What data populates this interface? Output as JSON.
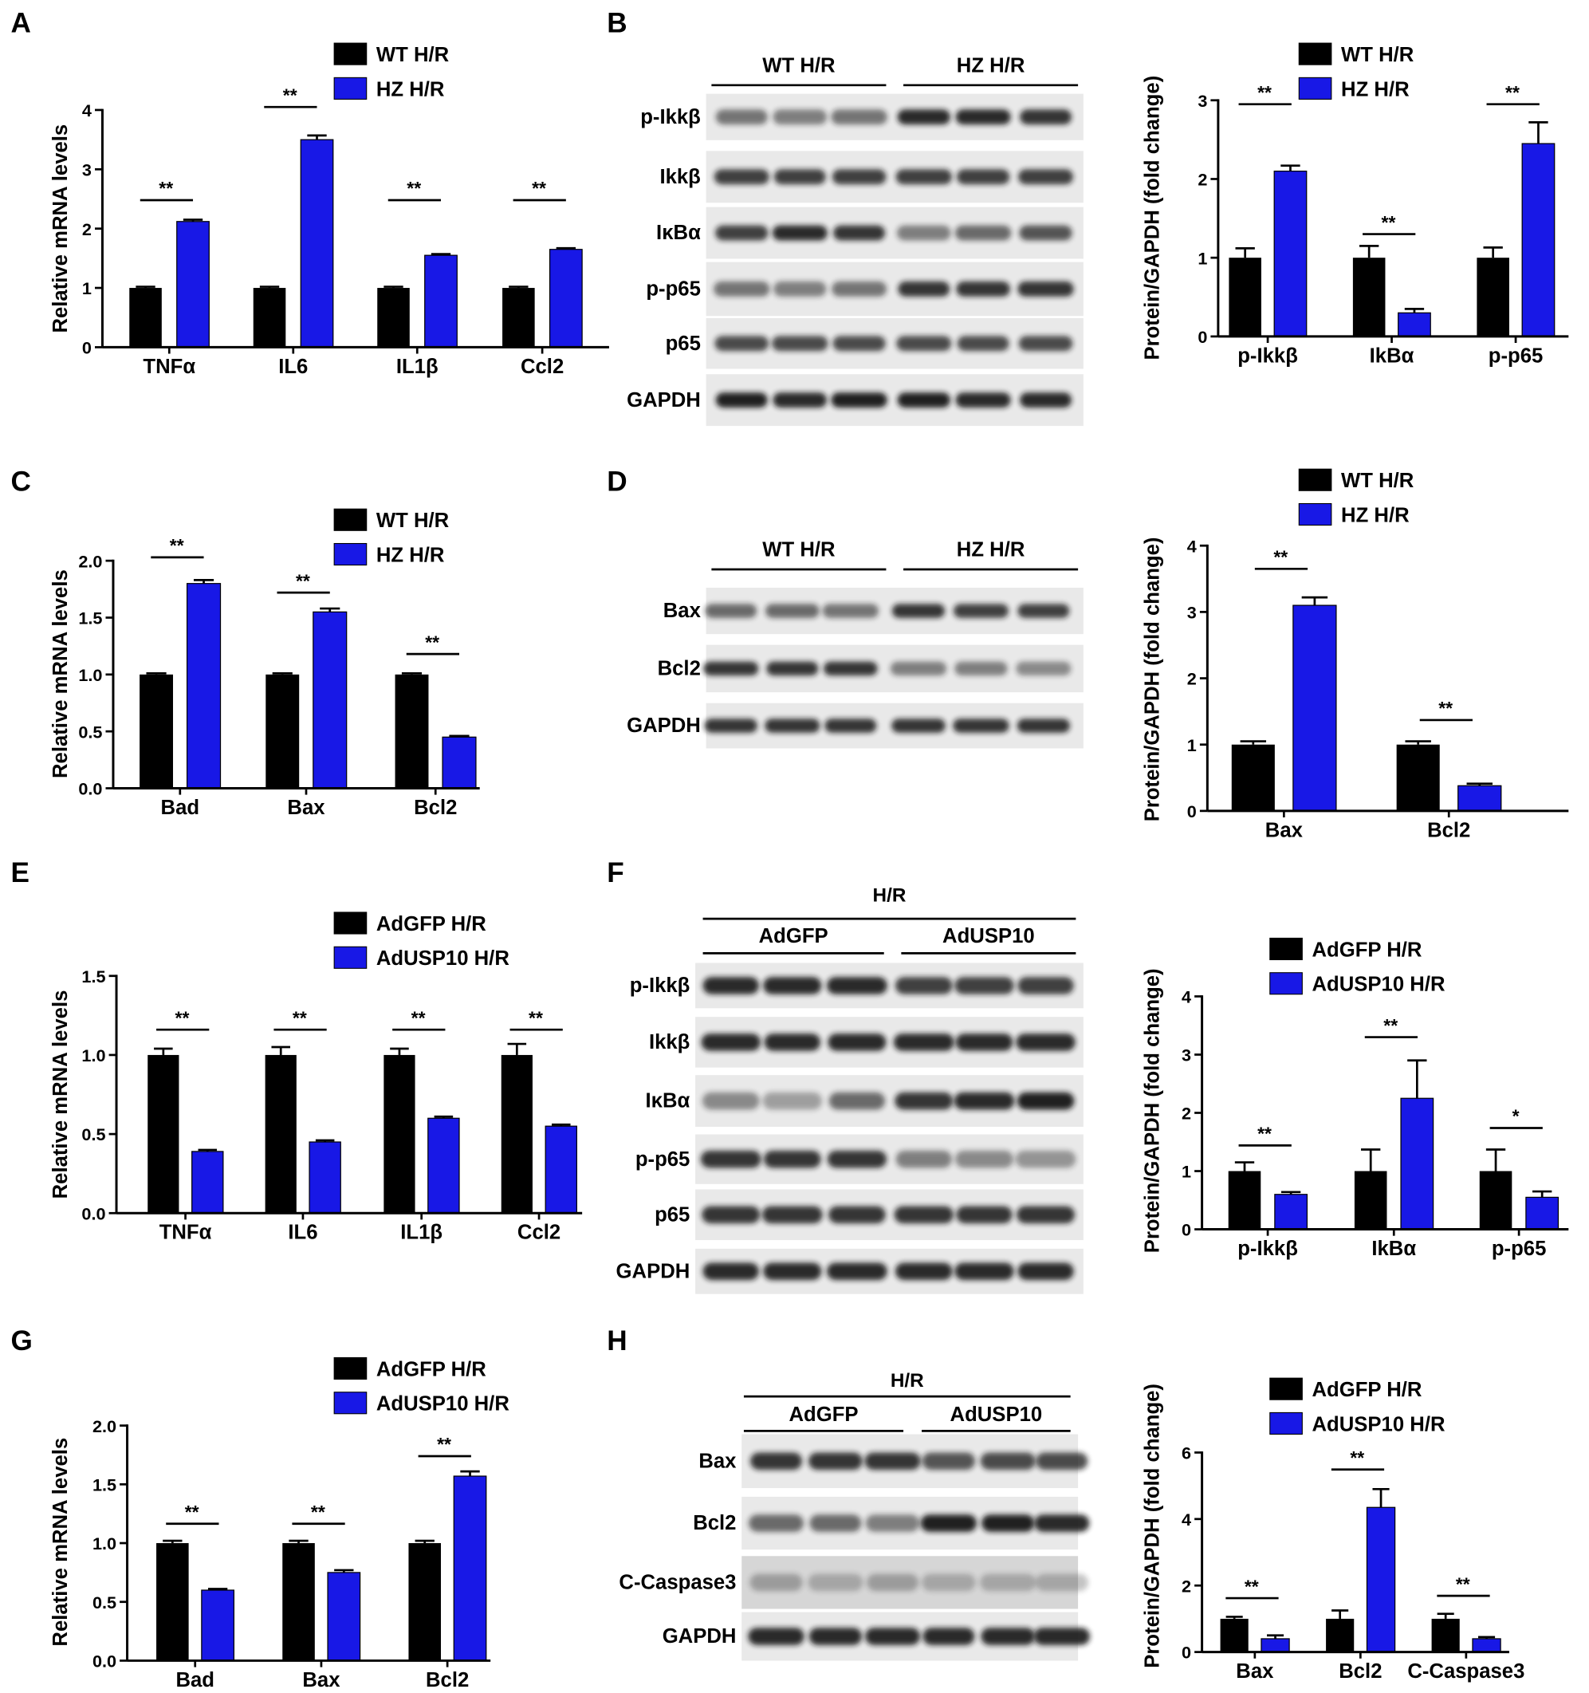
{
  "panels": [
    "A",
    "B",
    "C",
    "D",
    "E",
    "F",
    "G",
    "H"
  ],
  "colors": {
    "control": "#000000",
    "treatment": "#1818E6",
    "blot_band": "#141414",
    "blot_background": "#E9E9E9"
  },
  "chart_data": [
    {
      "type": "bar",
      "categories": [
        "TNFα",
        "IL6",
        "IL1β",
        "Ccl2"
      ],
      "series": [
        {
          "name": "WT H/R",
          "values": [
            1.0,
            1.0,
            1.0,
            1.0
          ],
          "errors": [
            0.02,
            0.02,
            0.02,
            0.02
          ],
          "color": "#000000"
        },
        {
          "name": "HZ H/R",
          "values": [
            2.12,
            3.5,
            1.55,
            1.65
          ],
          "errors": [
            0.03,
            0.07,
            0.02,
            0.02
          ],
          "color": "#1818E6"
        }
      ],
      "ylabel": "Relative mRNA levels",
      "ylim": [
        0,
        4
      ],
      "yticks": [
        "0",
        "1",
        "2",
        "3",
        "4"
      ],
      "significance": [
        "**",
        "**",
        "**",
        "**"
      ],
      "legend": "top",
      "grid": false
    },
    {
      "type": "bar",
      "categories": [
        "p-Ikkβ",
        "IkBα",
        "p-p65"
      ],
      "series": [
        {
          "name": "WT H/R",
          "values": [
            1.0,
            1.0,
            1.0
          ],
          "errors": [
            0.12,
            0.15,
            0.13
          ],
          "color": "#000000"
        },
        {
          "name": "HZ H/R",
          "values": [
            2.1,
            0.3,
            2.45
          ],
          "errors": [
            0.07,
            0.05,
            0.27
          ],
          "color": "#1818E6"
        }
      ],
      "ylabel": "Protein/GAPDH (fold change)",
      "ylim": [
        0,
        3
      ],
      "yticks": [
        "0",
        "1",
        "2",
        "3"
      ],
      "significance": [
        "**",
        "**",
        "**"
      ],
      "legend": "top",
      "grid": false
    },
    {
      "type": "bar",
      "categories": [
        "Bad",
        "Bax",
        "Bcl2"
      ],
      "series": [
        {
          "name": "WT H/R",
          "values": [
            1.0,
            1.0,
            1.0
          ],
          "errors": [
            0.01,
            0.01,
            0.01
          ],
          "color": "#000000"
        },
        {
          "name": "HZ H/R",
          "values": [
            1.8,
            1.55,
            0.45
          ],
          "errors": [
            0.03,
            0.03,
            0.01
          ],
          "color": "#1818E6"
        }
      ],
      "ylabel": "Relative mRNA levels",
      "ylim": [
        0,
        2
      ],
      "yticks": [
        "0.0",
        "0.5",
        "1.0",
        "1.5",
        "2.0"
      ],
      "significance": [
        "**",
        "**",
        "**"
      ],
      "legend": "top",
      "grid": false
    },
    {
      "type": "bar",
      "categories": [
        "Bax",
        "Bcl2"
      ],
      "series": [
        {
          "name": "WT H/R",
          "values": [
            1.0,
            1.0
          ],
          "errors": [
            0.05,
            0.05
          ],
          "color": "#000000"
        },
        {
          "name": "HZ H/R",
          "values": [
            3.1,
            0.38
          ],
          "errors": [
            0.12,
            0.03
          ],
          "color": "#1818E6"
        }
      ],
      "ylabel": "Protein/GAPDH (fold change)",
      "ylim": [
        0,
        4
      ],
      "yticks": [
        "0",
        "1",
        "2",
        "3",
        "4"
      ],
      "significance": [
        "**",
        "**"
      ],
      "legend": "top",
      "grid": false
    },
    {
      "type": "bar",
      "categories": [
        "TNFα",
        "IL6",
        "IL1β",
        "Ccl2"
      ],
      "series": [
        {
          "name": "AdGFP H/R",
          "values": [
            1.0,
            1.0,
            1.0,
            1.0
          ],
          "errors": [
            0.04,
            0.05,
            0.04,
            0.07
          ],
          "color": "#000000"
        },
        {
          "name": "AdUSP10 H/R",
          "values": [
            0.39,
            0.45,
            0.6,
            0.55
          ],
          "errors": [
            0.01,
            0.01,
            0.01,
            0.01
          ],
          "color": "#1818E6"
        }
      ],
      "ylabel": "Relative mRNA levels",
      "ylim": [
        0,
        1.5
      ],
      "yticks": [
        "0.0",
        "0.5",
        "1.0",
        "1.5"
      ],
      "significance": [
        "**",
        "**",
        "**",
        "**"
      ],
      "legend": "top",
      "grid": false
    },
    {
      "type": "bar",
      "categories": [
        "p-Ikkβ",
        "IkBα",
        "p-p65"
      ],
      "series": [
        {
          "name": "AdGFP H/R",
          "values": [
            1.0,
            1.0,
            1.0
          ],
          "errors": [
            0.15,
            0.37,
            0.37
          ],
          "color": "#000000"
        },
        {
          "name": "AdUSP10 H/R",
          "values": [
            0.6,
            2.25,
            0.55
          ],
          "errors": [
            0.04,
            0.65,
            0.1
          ],
          "color": "#1818E6"
        }
      ],
      "ylabel": "Protein/GAPDH (fold change)",
      "ylim": [
        0,
        4
      ],
      "yticks": [
        "0",
        "1",
        "2",
        "3",
        "4"
      ],
      "significance": [
        "**",
        "**",
        "*"
      ],
      "legend": "top",
      "grid": false
    },
    {
      "type": "bar",
      "categories": [
        "Bad",
        "Bax",
        "Bcl2"
      ],
      "series": [
        {
          "name": "AdGFP H/R",
          "values": [
            1.0,
            1.0,
            1.0
          ],
          "errors": [
            0.02,
            0.02,
            0.02
          ],
          "color": "#000000"
        },
        {
          "name": "AdUSP10 H/R",
          "values": [
            0.6,
            0.75,
            1.57
          ],
          "errors": [
            0.01,
            0.02,
            0.04
          ],
          "color": "#1818E6"
        }
      ],
      "ylabel": "Relative mRNA levels",
      "ylim": [
        0,
        2
      ],
      "yticks": [
        "0.0",
        "0.5",
        "1.0",
        "1.5",
        "2.0"
      ],
      "significance": [
        "**",
        "**",
        "**"
      ],
      "legend": "top",
      "grid": false
    },
    {
      "type": "bar",
      "categories": [
        "Bax",
        "Bcl2",
        "C-Caspase3"
      ],
      "series": [
        {
          "name": "AdGFP H/R",
          "values": [
            1.0,
            1.0,
            1.0
          ],
          "errors": [
            0.06,
            0.25,
            0.15
          ],
          "color": "#000000"
        },
        {
          "name": "AdUSP10 H/R",
          "values": [
            0.4,
            4.35,
            0.4
          ],
          "errors": [
            0.1,
            0.55,
            0.05
          ],
          "color": "#1818E6"
        }
      ],
      "ylabel": "Protein/GAPDH (fold change)",
      "ylim": [
        0,
        6
      ],
      "yticks": [
        "0",
        "2",
        "4",
        "6"
      ],
      "significance": [
        "**",
        "**",
        "**"
      ],
      "legend": "top",
      "grid": false
    }
  ],
  "blots": [
    {
      "groups": [
        {
          "label": "WT H/R",
          "lanes": 3
        },
        {
          "label": "HZ H/R",
          "lanes": 3
        }
      ],
      "rows": [
        "p-Ikkβ",
        "Ikkβ",
        "IκBα",
        "p-p65",
        "p65",
        "GAPDH"
      ]
    },
    {
      "groups": [
        {
          "label": "WT H/R",
          "lanes": 3
        },
        {
          "label": "HZ H/R",
          "lanes": 3
        }
      ],
      "rows": [
        "Bax",
        "Bcl2",
        "GAPDH"
      ]
    },
    {
      "condition": "H/R",
      "groups": [
        {
          "label": "AdGFP",
          "lanes": 3
        },
        {
          "label": "AdUSP10",
          "lanes": 3
        }
      ],
      "rows": [
        "p-Ikkβ",
        "Ikkβ",
        "IκBα",
        "p-p65",
        "p65",
        "GAPDH"
      ]
    },
    {
      "condition": "H/R",
      "groups": [
        {
          "label": "AdGFP",
          "lanes": 3
        },
        {
          "label": "AdUSP10",
          "lanes": 3
        }
      ],
      "rows": [
        "Bax",
        "Bcl2",
        "C-Caspase3",
        "GAPDH"
      ]
    }
  ]
}
